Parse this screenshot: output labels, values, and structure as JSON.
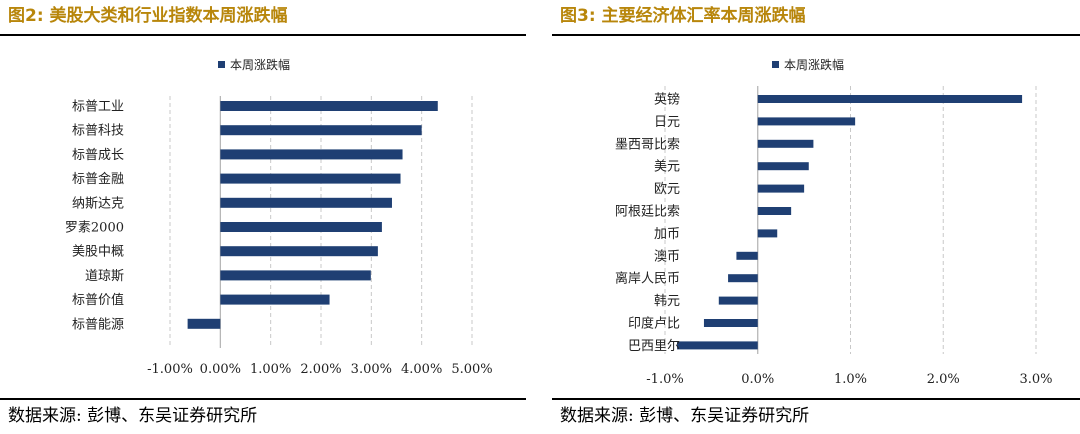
{
  "left_panel": {
    "title": "图2:  美股大类和行业指数本周涨跌幅",
    "source": "数据来源:  彭博、东吴证券研究所"
  },
  "right_panel": {
    "title": "图3:  主要经济体汇率本周涨跌幅",
    "source": "数据来源:  彭博、东吴证券研究所"
  },
  "colors": {
    "bar": "#1f3f73",
    "grid": "#c8c8c8",
    "title": "#b8860b"
  },
  "chart_data": [
    {
      "type": "bar",
      "orientation": "horizontal",
      "legend": "本周涨跌幅",
      "legend_position": "top",
      "categories": [
        "标普工业",
        "标普科技",
        "标普成长",
        "标普金融",
        "纳斯达克",
        "罗素2000",
        "美股中概",
        "道琼斯",
        "标普价值",
        "标普能源"
      ],
      "values": [
        4.32,
        4.0,
        3.62,
        3.58,
        3.41,
        3.21,
        3.13,
        2.99,
        2.17,
        -0.65
      ],
      "xlim": [
        -1.0,
        5.0
      ],
      "xticks": [
        -1,
        0,
        1,
        2,
        3,
        4,
        5
      ],
      "xtick_labels": [
        "-1.00%",
        "0.00%",
        "1.00%",
        "2.00%",
        "3.00%",
        "4.00%",
        "5.00%"
      ],
      "grid": "vertical-dashed"
    },
    {
      "type": "bar",
      "orientation": "horizontal",
      "legend": "本周涨跌幅",
      "legend_position": "top",
      "categories": [
        "英镑",
        "日元",
        "墨西哥比索",
        "美元",
        "欧元",
        "阿根廷比索",
        "加币",
        "澳币",
        "离岸人民币",
        "韩元",
        "印度卢比",
        "巴西里尔"
      ],
      "values": [
        2.85,
        1.05,
        0.6,
        0.55,
        0.5,
        0.36,
        0.21,
        -0.23,
        -0.32,
        -0.42,
        -0.58,
        -0.87
      ],
      "xlim": [
        -1.0,
        3.0
      ],
      "xticks": [
        -1,
        0,
        1,
        2,
        3
      ],
      "xtick_labels": [
        "-1.0%",
        "0.0%",
        "1.0%",
        "2.0%",
        "3.0%"
      ],
      "grid": "vertical-dashed"
    }
  ]
}
